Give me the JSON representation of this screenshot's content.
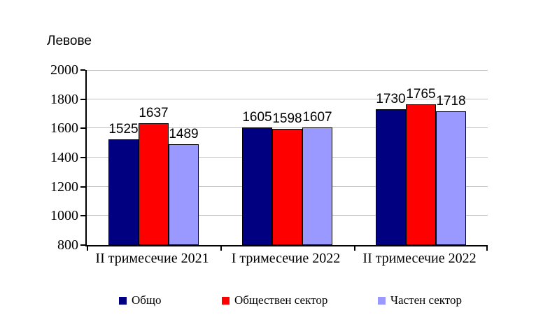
{
  "chart_data": {
    "type": "bar",
    "title": "Левове",
    "categories": [
      "II тримесечие 2021",
      "I тримесечие 2022",
      "II тримесечие 2022"
    ],
    "series": [
      {
        "name": "Общо",
        "color": "#000080",
        "values": [
          1525,
          1605,
          1730
        ]
      },
      {
        "name": "Обществен сектор",
        "color": "#FF0000",
        "values": [
          1637,
          1598,
          1765
        ]
      },
      {
        "name": "Частен сектор",
        "color": "#9999FF",
        "values": [
          1489,
          1607,
          1718
        ]
      }
    ],
    "ylim": [
      800,
      2000
    ],
    "yticks": [
      2000,
      1800,
      1600,
      1400,
      1200,
      1000,
      800
    ],
    "grid": true,
    "gridline_color": "#C0C0C0",
    "axis_color": "#000000",
    "legend_position": "bottom"
  }
}
